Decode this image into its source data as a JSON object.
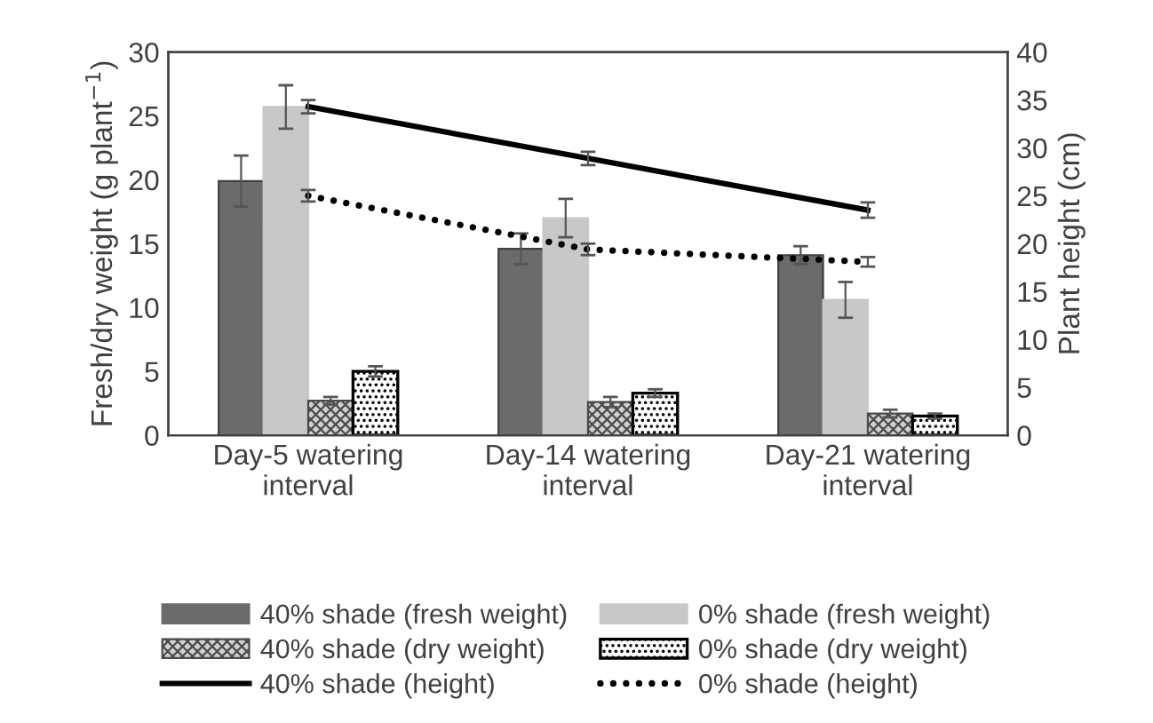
{
  "chart_data": {
    "type": "bar",
    "categories": [
      "Day-5 watering\ninterval",
      "Day-14 watering\ninterval",
      "Day-21 watering\ninterval"
    ],
    "ylabel": "Fresh/dry weight (g plant$^{−1}$)",
    "y2label": "Plant height (cm)",
    "ylim": [
      0,
      30
    ],
    "yticks": [
      0,
      5,
      10,
      15,
      20,
      25,
      30
    ],
    "y2lim": [
      0,
      40
    ],
    "y2ticks": [
      0,
      5,
      10,
      15,
      20,
      25,
      30,
      35,
      40
    ],
    "grid": false,
    "legend": "bottom",
    "series": [
      {
        "name": "40% shade (fresh weight)",
        "color": "#6b6b6b",
        "values": [
          19.9,
          14.6,
          14.1
        ],
        "errors": [
          2.0,
          1.2,
          0.7
        ]
      },
      {
        "name": "0% shade (fresh weight)",
        "color": "#c8c8c8",
        "values": [
          25.7,
          17.0,
          10.6
        ],
        "errors": [
          1.7,
          1.5,
          1.4
        ]
      },
      {
        "name": "40% shade (dry weight)",
        "color": "#4a4a4a",
        "values": [
          2.7,
          2.6,
          1.7
        ],
        "errors": [
          0.3,
          0.4,
          0.3
        ]
      },
      {
        "name": "0% shade (dry weight)",
        "color": "#000000",
        "values": [
          5.0,
          3.3,
          1.5
        ],
        "errors": [
          0.4,
          0.3,
          0.2
        ]
      },
      {
        "name": "40% shade (height)",
        "type": "line",
        "axis": "y2",
        "color": "#000000",
        "line_style": "solid",
        "values": [
          34.3,
          28.9,
          23.5
        ],
        "errors": [
          0.7,
          0.7,
          0.8
        ]
      },
      {
        "name": "0% shade (height)",
        "type": "line",
        "axis": "y2",
        "color": "#000000",
        "line_style": "dotted",
        "values": [
          25.0,
          19.4,
          18.1
        ],
        "errors": [
          0.6,
          0.6,
          0.5
        ]
      }
    ]
  }
}
